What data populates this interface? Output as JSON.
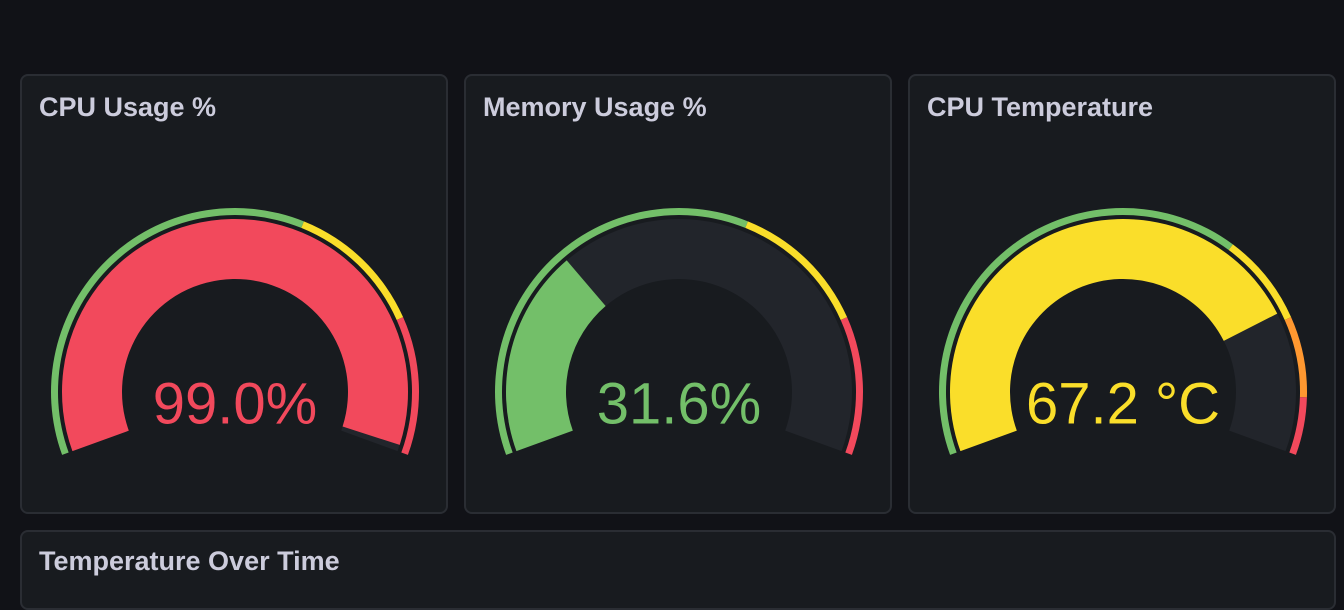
{
  "panels": [
    {
      "title": "CPU Usage %",
      "gauge": {
        "value": 99.0,
        "value_label": "99.0%",
        "min": 0,
        "max": 100,
        "base_color": "#73bf69",
        "thresholds": [
          {
            "value": 60,
            "color": "#fade2a"
          },
          {
            "value": 80,
            "color": "#f2495c"
          }
        ]
      }
    },
    {
      "title": "Memory Usage %",
      "gauge": {
        "value": 31.6,
        "value_label": "31.6%",
        "min": 0,
        "max": 100,
        "base_color": "#73bf69",
        "thresholds": [
          {
            "value": 60,
            "color": "#fade2a"
          },
          {
            "value": 80,
            "color": "#f2495c"
          }
        ]
      }
    },
    {
      "title": "CPU Temperature",
      "gauge": {
        "value": 67.2,
        "value_label": "67.2 °C",
        "min": 20,
        "max": 80,
        "base_color": "#73bf69",
        "thresholds": [
          {
            "value": 60,
            "color": "#fade2a"
          },
          {
            "value": 68,
            "color": "#ff9830"
          },
          {
            "value": 75,
            "color": "#f2495c"
          }
        ]
      }
    }
  ],
  "bottom_panel": {
    "title": "Temperature Over Time"
  }
}
